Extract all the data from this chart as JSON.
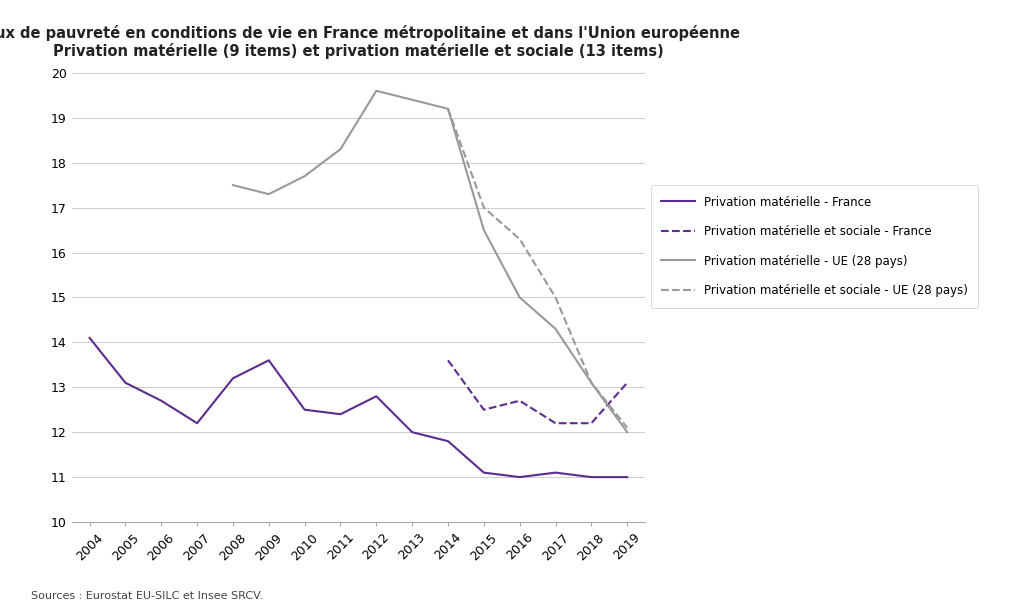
{
  "title_line1": "Taux de pauvreté en conditions de vie en France métropolitaine et dans l'Union européenne",
  "title_line2": "Privation matérielle (9 items) et privation matérielle et sociale (13 items)",
  "source_text": "Sources : Eurostat EU-SILC et Insee SRCV.",
  "years_france_materielle": [
    2004,
    2005,
    2006,
    2007,
    2008,
    2009,
    2010,
    2011,
    2012,
    2013,
    2014,
    2015,
    2016,
    2017,
    2018,
    2019
  ],
  "values_france_materielle": [
    14.1,
    13.1,
    12.7,
    12.2,
    13.2,
    13.6,
    12.5,
    12.4,
    12.8,
    12.0,
    11.8,
    11.1,
    11.0,
    11.1,
    11.0,
    11.0
  ],
  "years_france_sociale": [
    2014,
    2015,
    2016,
    2017,
    2018,
    2019
  ],
  "values_france_sociale": [
    13.6,
    12.5,
    12.7,
    12.2,
    12.2,
    13.1
  ],
  "years_ue_materielle": [
    2008,
    2009,
    2010,
    2011,
    2012,
    2013,
    2014,
    2015,
    2016,
    2017,
    2018,
    2019
  ],
  "values_ue_materielle": [
    17.5,
    17.3,
    17.7,
    18.3,
    19.6,
    19.4,
    19.2,
    16.5,
    15.0,
    14.3,
    13.1,
    12.0
  ],
  "years_ue_sociale": [
    2014,
    2015,
    2016,
    2017,
    2018,
    2019
  ],
  "values_ue_sociale": [
    19.2,
    17.0,
    16.3,
    15.0,
    13.1,
    12.1
  ],
  "color_france": "#5B2D8E",
  "color_ue": "#999999",
  "ylim": [
    10,
    20
  ],
  "yticks": [
    10,
    11,
    12,
    13,
    14,
    15,
    16,
    17,
    18,
    19,
    20
  ],
  "legend_labels": [
    "Privation matérielle - France",
    "Privation matérielle et sociale - France",
    "Privation matérielle - UE (28 pays)",
    "Privation matérielle et sociale - UE (28 pays)"
  ],
  "fig_width": 10.24,
  "fig_height": 6.07,
  "bg_color": "#ffffff",
  "linewidth": 1.5
}
